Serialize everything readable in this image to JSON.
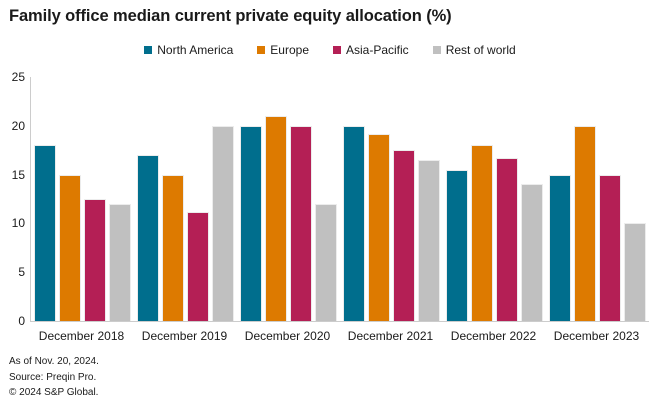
{
  "title": "Family office median current private equity allocation (%)",
  "footer": {
    "as_of": "As of Nov. 20, 2024.",
    "source": "Source: Preqin Pro.",
    "copyright": "© 2024 S&P Global."
  },
  "colors": {
    "axis_line": "#cccccc",
    "text": "#1a1a1a",
    "north_america": "#006e8d",
    "europe": "#dd7a00",
    "asia_pacific": "#b41f55",
    "rest_of_world": "#c0c0c0"
  },
  "chart_data": {
    "type": "bar",
    "title": "Family office median current private equity allocation (%)",
    "categories": [
      "December 2018",
      "December 2019",
      "December 2020",
      "December 2021",
      "December 2022",
      "December 2023"
    ],
    "series": [
      {
        "name": "North America",
        "color": "#006e8d",
        "values": [
          18,
          17,
          20,
          20,
          15.5,
          15
        ]
      },
      {
        "name": "Europe",
        "color": "#dd7a00",
        "values": [
          15,
          15,
          21,
          19.2,
          18,
          20
        ]
      },
      {
        "name": "Asia-Pacific",
        "color": "#b41f55",
        "values": [
          12.5,
          11.2,
          20,
          17.5,
          16.7,
          15
        ]
      },
      {
        "name": "Rest of world",
        "color": "#c0c0c0",
        "values": [
          12,
          20,
          12,
          16.5,
          14,
          10
        ]
      }
    ],
    "xlabel": "",
    "ylabel": "",
    "ylim": [
      0,
      25
    ],
    "yticks": [
      25,
      20,
      15,
      10,
      5,
      0
    ],
    "grid": false,
    "legend_position": "top-center"
  }
}
